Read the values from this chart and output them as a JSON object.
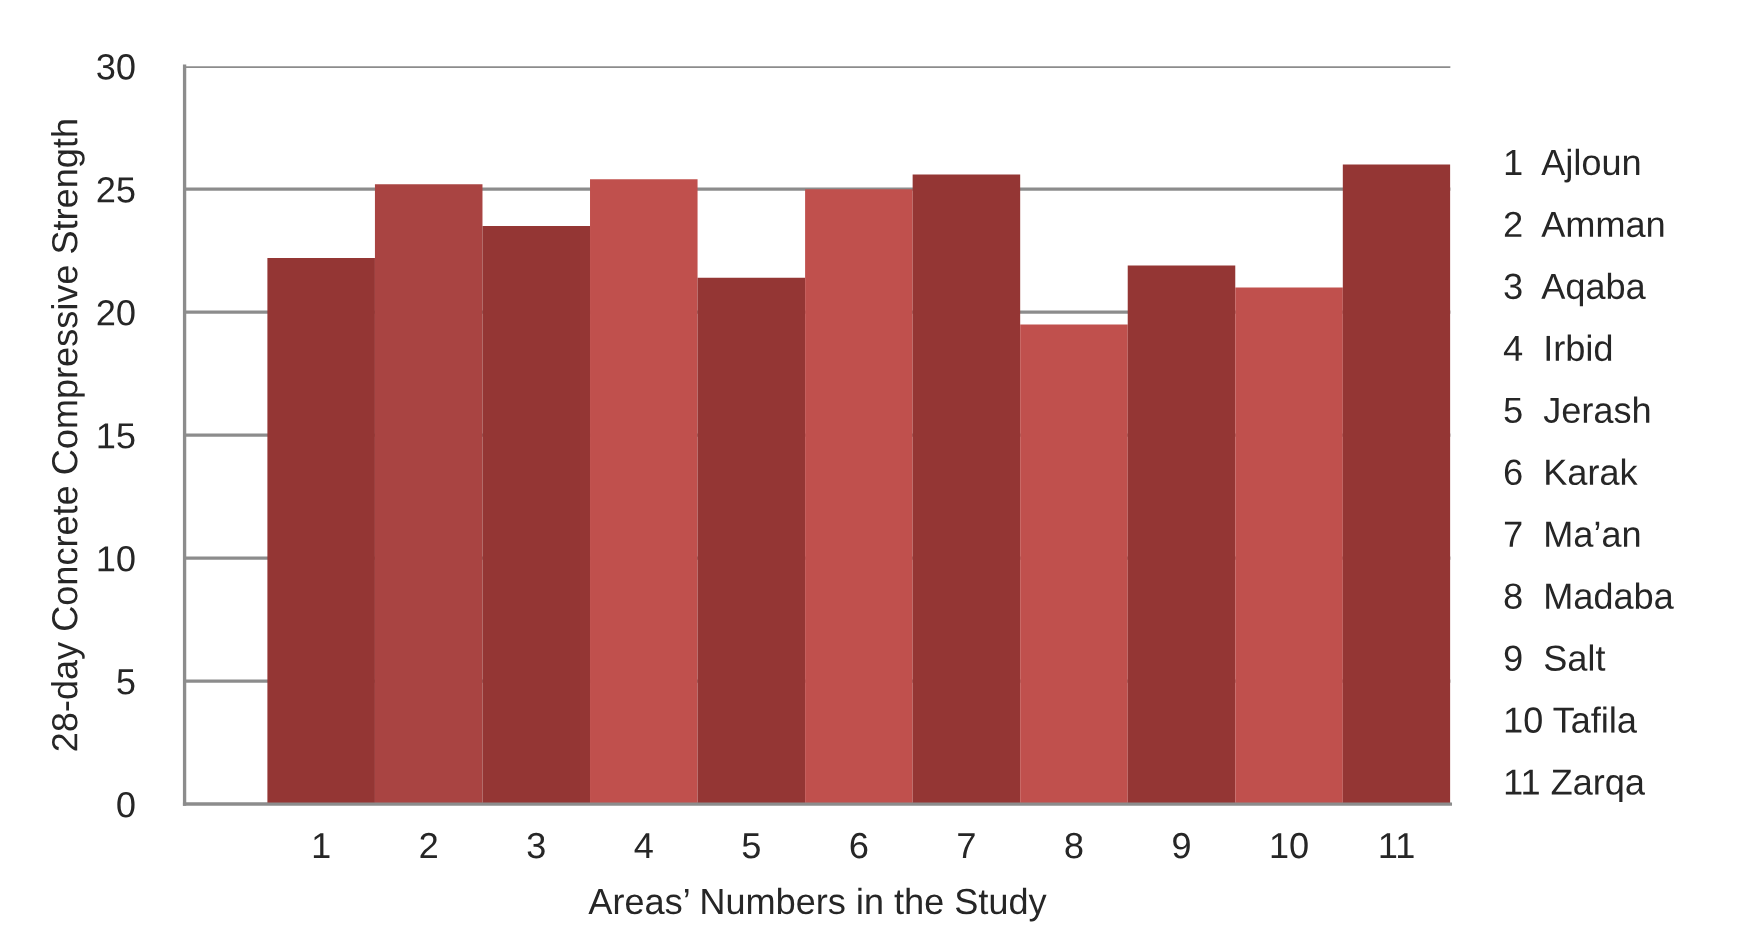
{
  "chart_data": {
    "type": "bar",
    "xlabel": "Areas’ Numbers in the Study",
    "ylabel": "28-day Concrete Compressive Strength",
    "categories": [
      "1",
      "2",
      "3",
      "4",
      "5",
      "6",
      "7",
      "8",
      "9",
      "10",
      "11"
    ],
    "values": [
      22.2,
      25.2,
      23.5,
      25.4,
      21.4,
      25.0,
      25.6,
      19.5,
      21.9,
      21.0,
      26.0
    ],
    "colors": [
      "#943634",
      "#a94442",
      "#943634",
      "#c0504d",
      "#943634",
      "#c0504d",
      "#943634",
      "#c0504d",
      "#943634",
      "#c0504d",
      "#943634"
    ],
    "ylim": [
      0,
      30
    ],
    "yticks": [
      0,
      5,
      10,
      15,
      20,
      25,
      30
    ],
    "grid": "y",
    "legend": false,
    "annotations": [
      "1  Ajloun",
      "2  Amman",
      "3  Aqaba",
      "4  Irbid",
      "5  Jerash",
      "6  Karak",
      "7  Ma’an",
      "8  Madaba",
      "9  Salt",
      "10 Tafila",
      "11 Zarqa"
    ]
  }
}
